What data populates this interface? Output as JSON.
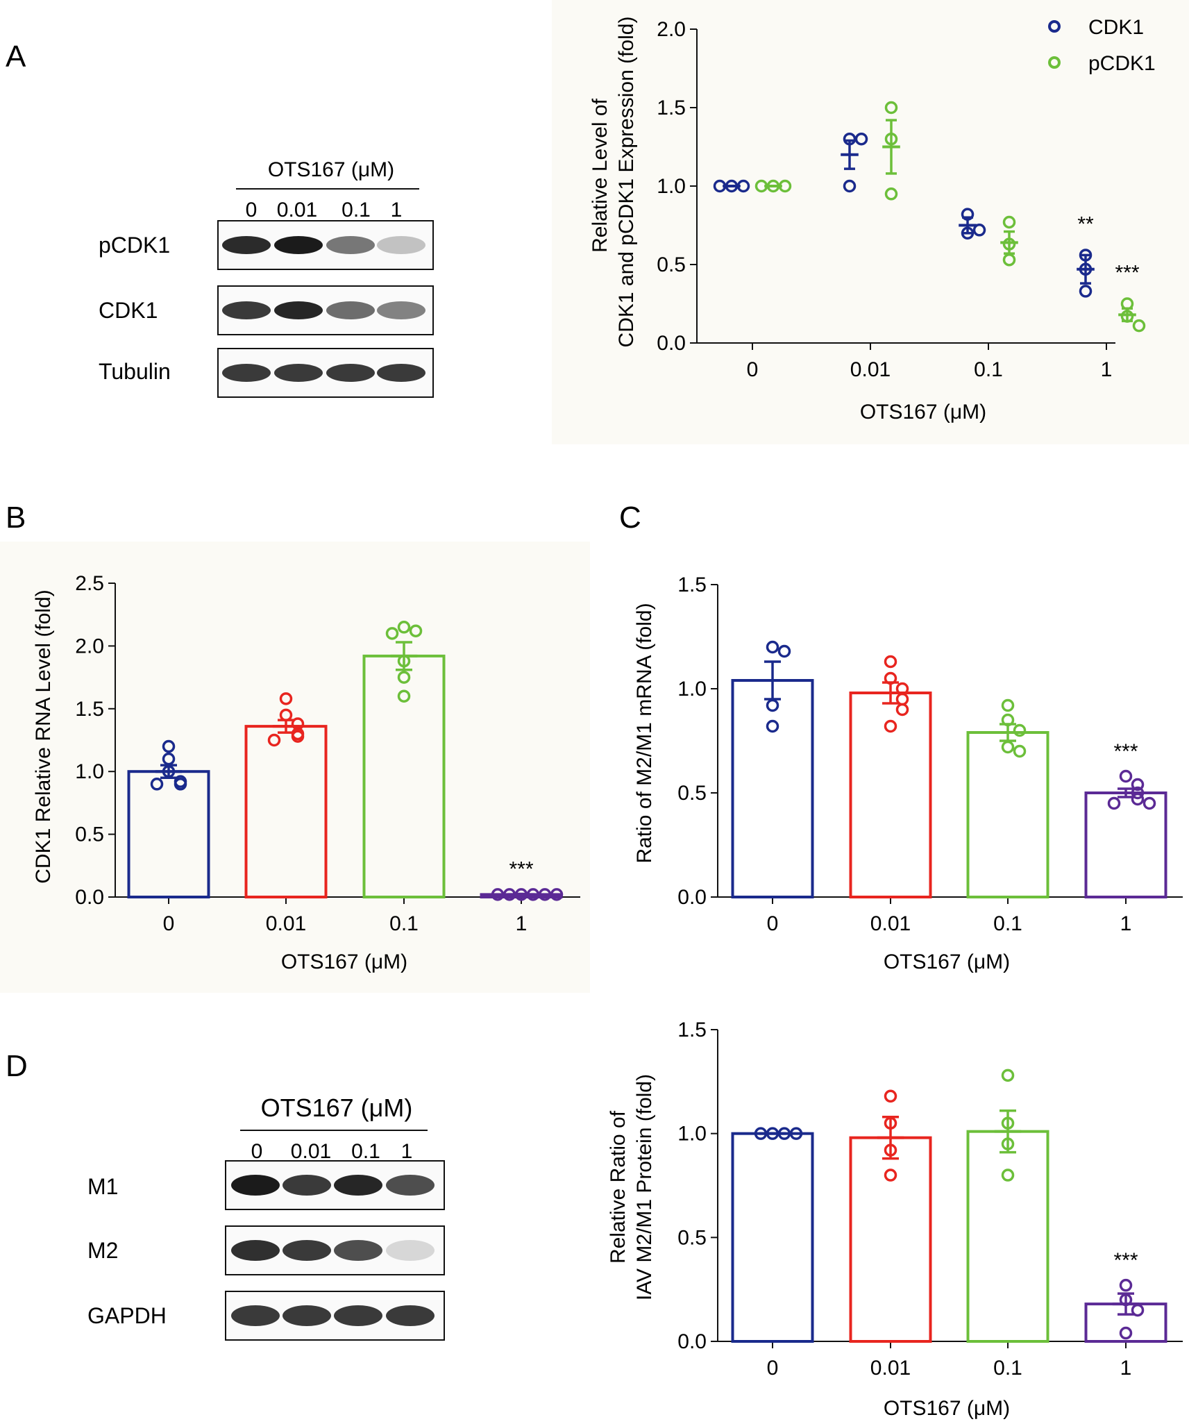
{
  "panels": {
    "a": {
      "letter": "A",
      "blot": {
        "title": "OTS167 (μM)",
        "lanes": [
          "0",
          "0.01",
          "0.1",
          "1"
        ],
        "rows": [
          {
            "label": "pCDK1",
            "intensities": [
              0.92,
              1.0,
              0.55,
              0.18
            ]
          },
          {
            "label": "CDK1",
            "intensities": [
              0.85,
              0.95,
              0.6,
              0.5
            ]
          },
          {
            "label": "Tubulin",
            "intensities": [
              0.85,
              0.85,
              0.85,
              0.85
            ]
          }
        ]
      }
    },
    "b": {
      "letter": "B"
    },
    "c": {
      "letter": "C"
    },
    "d": {
      "letter": "D",
      "blot": {
        "title": "OTS167 (μM)",
        "lanes": [
          "0",
          "0.01",
          "0.1",
          "1"
        ],
        "rows": [
          {
            "label": "M1",
            "intensities": [
              1.0,
              0.85,
              0.95,
              0.75
            ]
          },
          {
            "label": "M2",
            "intensities": [
              0.9,
              0.85,
              0.75,
              0.08
            ]
          },
          {
            "label": "GAPDH",
            "intensities": [
              0.85,
              0.85,
              0.85,
              0.85
            ]
          }
        ]
      }
    }
  },
  "colors": {
    "blue": "#1a2a8c",
    "red": "#e8251f",
    "green": "#6cbf3a",
    "purple": "#5b2a95"
  },
  "chart_data": [
    {
      "id": "a",
      "type": "scatter",
      "ylabel": [
        "Relative Level of",
        "CDK1 and pCDK1 Expression (fold)"
      ],
      "xlabel": "OTS167 (μM)",
      "categories": [
        "0",
        "0.01",
        "0.1",
        "1"
      ],
      "ylim": [
        0,
        2.0
      ],
      "yticks": [
        "0.0",
        "0.5",
        "1.0",
        "1.5",
        "2.0"
      ],
      "legend": {
        "placement": "top-right"
      },
      "series": [
        {
          "name": "CDK1",
          "color": "#1a2a8c",
          "means": [
            1.0,
            1.2,
            0.75,
            0.47
          ],
          "sem": [
            0.0,
            0.09,
            0.05,
            0.09
          ],
          "points": [
            [
              1.0,
              1.0,
              1.0
            ],
            [
              1.3,
              1.3,
              1.0
            ],
            [
              0.82,
              0.7,
              0.72
            ],
            [
              0.56,
              0.47,
              0.33
            ]
          ]
        },
        {
          "name": "pCDK1",
          "color": "#6cbf3a",
          "means": [
            1.0,
            1.25,
            0.64,
            0.18
          ],
          "sem": [
            0.0,
            0.17,
            0.07,
            0.04
          ],
          "points": [
            [
              1.0,
              1.0,
              1.0
            ],
            [
              1.5,
              1.3,
              0.95
            ],
            [
              0.77,
              0.63,
              0.53
            ],
            [
              0.25,
              0.17,
              0.11
            ]
          ]
        }
      ],
      "significance": [
        {
          "series": 0,
          "category": 3,
          "label": "**"
        },
        {
          "series": 1,
          "category": 3,
          "label": "***"
        }
      ]
    },
    {
      "id": "b",
      "type": "bar",
      "ylabel": [
        "CDK1 Relative RNA Level (fold)"
      ],
      "xlabel": "OTS167 (μM)",
      "categories": [
        "0",
        "0.01",
        "0.1",
        "1"
      ],
      "ylim": [
        0,
        2.5
      ],
      "yticks": [
        "0.0",
        "0.5",
        "1.0",
        "1.5",
        "2.0",
        "2.5"
      ],
      "values": [
        1.0,
        1.36,
        1.92,
        0.02
      ],
      "sem": [
        0.05,
        0.05,
        0.11,
        0.005
      ],
      "colors": [
        "#1a2a8c",
        "#e8251f",
        "#6cbf3a",
        "#5b2a95"
      ],
      "points": [
        [
          1.2,
          1.1,
          1.0,
          0.92,
          0.9,
          0.9
        ],
        [
          1.58,
          1.45,
          1.38,
          1.3,
          1.28,
          1.25
        ],
        [
          2.15,
          2.12,
          2.1,
          1.88,
          1.75,
          1.6
        ],
        [
          0.02,
          0.02,
          0.02,
          0.02,
          0.02,
          0.02
        ]
      ],
      "significance": [
        {
          "category": 3,
          "label": "***"
        }
      ]
    },
    {
      "id": "c",
      "type": "bar",
      "ylabel": [
        "Ratio of M2/M1 mRNA (fold)"
      ],
      "xlabel": "OTS167 (μM)",
      "categories": [
        "0",
        "0.01",
        "0.1",
        "1"
      ],
      "ylim": [
        0,
        1.5
      ],
      "yticks": [
        "0.0",
        "0.5",
        "1.0",
        "1.5"
      ],
      "values": [
        1.04,
        0.98,
        0.79,
        0.5
      ],
      "sem": [
        0.09,
        0.05,
        0.04,
        0.02
      ],
      "colors": [
        "#1a2a8c",
        "#e8251f",
        "#6cbf3a",
        "#5b2a95"
      ],
      "points": [
        [
          1.2,
          1.18,
          0.92,
          0.82
        ],
        [
          1.13,
          1.05,
          1.0,
          0.95,
          0.9,
          0.82
        ],
        [
          0.92,
          0.85,
          0.8,
          0.72,
          0.7
        ],
        [
          0.58,
          0.54,
          0.5,
          0.47,
          0.45,
          0.45
        ]
      ],
      "significance": [
        {
          "category": 3,
          "label": "***"
        }
      ]
    },
    {
      "id": "d",
      "type": "bar",
      "ylabel": [
        "Relative Ratio of",
        "IAV M2/M1 Protein (fold)"
      ],
      "xlabel": "OTS167 (μM)",
      "categories": [
        "0",
        "0.01",
        "0.1",
        "1"
      ],
      "ylim": [
        0,
        1.5
      ],
      "yticks": [
        "0.0",
        "0.5",
        "1.0",
        "1.5"
      ],
      "values": [
        1.0,
        0.98,
        1.01,
        0.18
      ],
      "sem": [
        0.0,
        0.1,
        0.1,
        0.05
      ],
      "colors": [
        "#1a2a8c",
        "#e8251f",
        "#6cbf3a",
        "#5b2a95"
      ],
      "points": [
        [
          1.0,
          1.0,
          1.0,
          1.0
        ],
        [
          1.18,
          1.05,
          0.92,
          0.8
        ],
        [
          1.28,
          1.05,
          0.95,
          0.8
        ],
        [
          0.27,
          0.2,
          0.15,
          0.04
        ]
      ],
      "significance": [
        {
          "category": 3,
          "label": "***"
        }
      ]
    }
  ]
}
